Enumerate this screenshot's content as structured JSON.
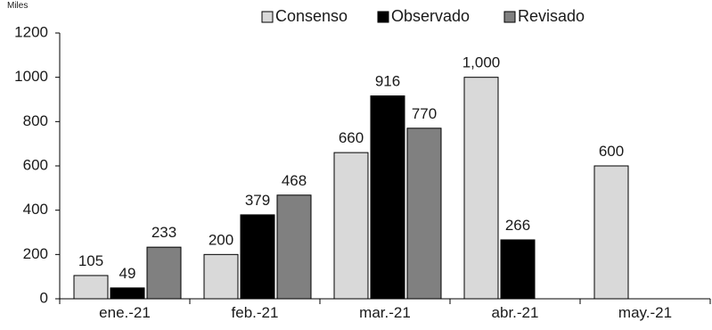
{
  "chart_data": {
    "type": "bar",
    "unit_label": "Miles",
    "categories": [
      "ene.-21",
      "feb.-21",
      "mar.-21",
      "abr.-21",
      "may.-21"
    ],
    "series": [
      {
        "name": "Consenso",
        "color": "#d9d9d9",
        "values": [
          105,
          200,
          660,
          1000,
          600
        ],
        "labels": [
          "105",
          "200",
          "660",
          "1,000",
          "600"
        ]
      },
      {
        "name": "Observado",
        "color": "#000000",
        "values": [
          49,
          379,
          916,
          266,
          null
        ],
        "labels": [
          "49",
          "379",
          "916",
          "266",
          ""
        ]
      },
      {
        "name": "Revisado",
        "color": "#808080",
        "values": [
          233,
          468,
          770,
          null,
          null
        ],
        "labels": [
          "233",
          "468",
          "770",
          "",
          ""
        ]
      }
    ],
    "yticks": [
      "0",
      "200",
      "400",
      "600",
      "800",
      "1000",
      "1200"
    ],
    "ylim": [
      0,
      1200
    ],
    "legend_position": "top",
    "grid": false
  }
}
